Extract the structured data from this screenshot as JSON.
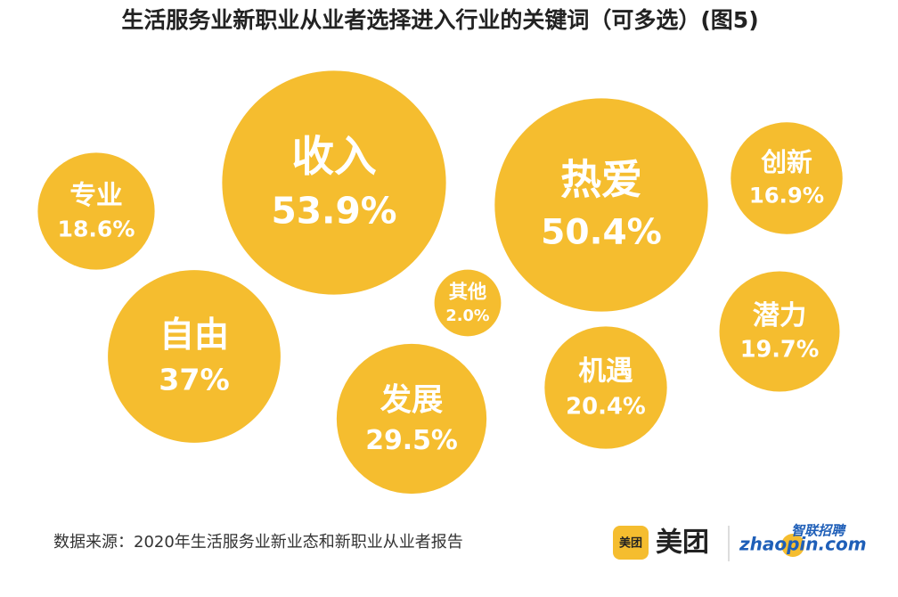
{
  "chart_data": {
    "type": "bubble",
    "title": "生活服务业新职业从业者选择进入行业的关键词（可多选）(图5)",
    "categories": [
      "收入",
      "热爱",
      "创新",
      "专业",
      "其他",
      "自由",
      "发展",
      "机遇",
      "潜力"
    ],
    "values": [
      53.9,
      50.4,
      16.9,
      18.6,
      2.0,
      37,
      29.5,
      20.4,
      19.7
    ],
    "value_labels": [
      "53.9%",
      "50.4%",
      "16.9%",
      "18.6%",
      "2.0%",
      "37%",
      "29.5%",
      "20.4%",
      "19.7%"
    ],
    "color": "#f5bd2f",
    "source": "数据来源：2020年生活服务业新业态和新职业从业者报告"
  },
  "logos": {
    "meituan_badge": "美团",
    "meituan": "美团",
    "zhilian": "智联招聘",
    "zhaopin": "zhaopin.com"
  }
}
